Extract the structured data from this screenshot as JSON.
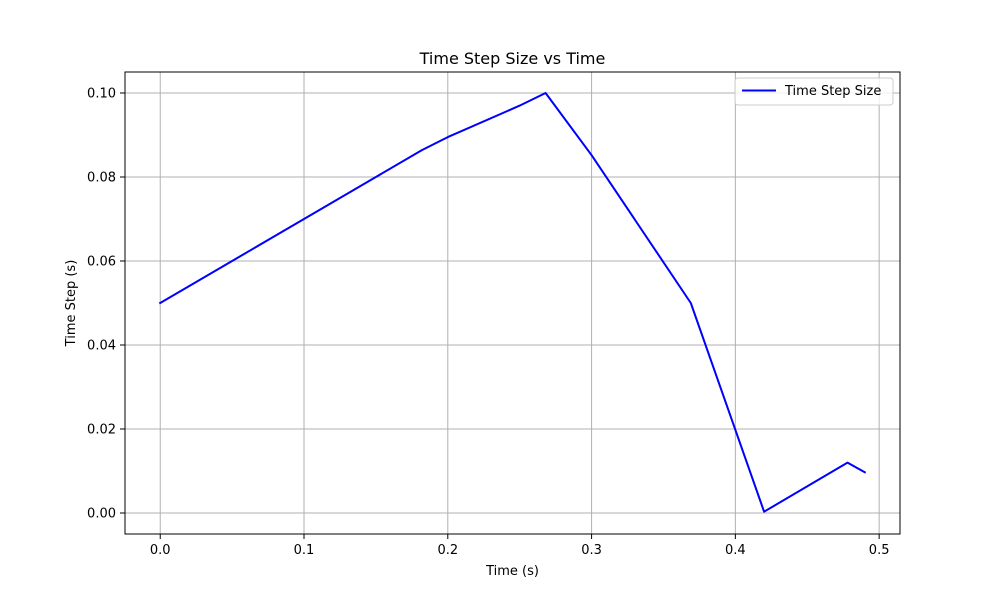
{
  "chart_data": {
    "type": "line",
    "title": "Time Step Size vs Time",
    "xlabel": "Time (s)",
    "ylabel": "Time Step (s)",
    "xlim": [
      -0.0245,
      0.5145
    ],
    "ylim": [
      -0.005,
      0.105
    ],
    "xticks": [
      0.0,
      0.1,
      0.2,
      0.3,
      0.4,
      0.5
    ],
    "xtick_labels": [
      "0.0",
      "0.1",
      "0.2",
      "0.3",
      "0.4",
      "0.5"
    ],
    "yticks": [
      0.0,
      0.02,
      0.04,
      0.06,
      0.08,
      0.1
    ],
    "ytick_labels": [
      "0.00",
      "0.02",
      "0.04",
      "0.06",
      "0.08",
      "0.10"
    ],
    "grid": true,
    "legend_position": "upper right",
    "series": [
      {
        "name": "Time Step Size",
        "color": "#0000ff",
        "x": [
          0.0,
          0.05,
          0.1,
          0.15,
          0.182,
          0.2,
          0.25,
          0.268,
          0.3,
          0.369,
          0.42,
          0.478,
          0.49
        ],
        "y": [
          0.05,
          0.06,
          0.07,
          0.08,
          0.0864,
          0.0895,
          0.097,
          0.1,
          0.0852,
          0.05,
          0.0003,
          0.012,
          0.0097
        ]
      }
    ]
  }
}
